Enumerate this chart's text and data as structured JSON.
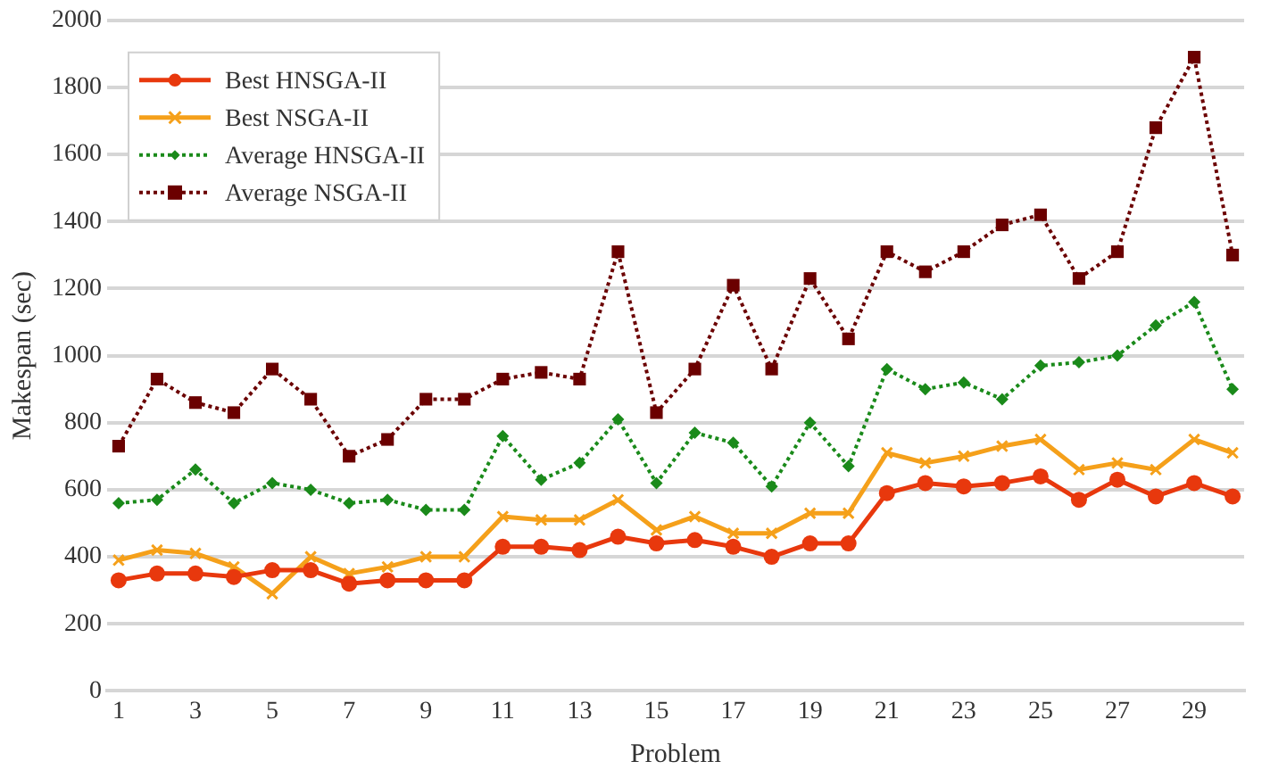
{
  "chart_data": {
    "type": "line",
    "xlabel": "Problem",
    "ylabel": "Makespan (sec)",
    "x": [
      1,
      2,
      3,
      4,
      5,
      6,
      7,
      8,
      9,
      10,
      11,
      12,
      13,
      14,
      15,
      16,
      17,
      18,
      19,
      20,
      21,
      22,
      23,
      24,
      25,
      26,
      27,
      28,
      29,
      30
    ],
    "xlim": [
      0.7,
      30.3
    ],
    "xticks": [
      1,
      3,
      5,
      7,
      9,
      11,
      13,
      15,
      17,
      19,
      21,
      23,
      25,
      27,
      29
    ],
    "ylim": [
      0,
      2000
    ],
    "yticks": [
      0,
      200,
      400,
      600,
      800,
      1000,
      1200,
      1400,
      1600,
      1800,
      2000
    ],
    "grid": "y",
    "legend": "top left",
    "series": [
      {
        "name": "Best HNSGA-II",
        "color": "#e8380d",
        "marker": "circle",
        "line_style": "solid",
        "values": [
          330,
          350,
          350,
          340,
          360,
          360,
          320,
          330,
          330,
          330,
          430,
          430,
          420,
          460,
          440,
          450,
          430,
          400,
          440,
          440,
          590,
          620,
          610,
          620,
          640,
          570,
          630,
          580,
          620,
          580
        ]
      },
      {
        "name": "Best NSGA-II",
        "color": "#f5a01a",
        "marker": "cross",
        "line_style": "solid",
        "values": [
          390,
          420,
          410,
          370,
          290,
          400,
          350,
          370,
          400,
          400,
          520,
          510,
          510,
          570,
          480,
          520,
          470,
          470,
          530,
          530,
          710,
          680,
          700,
          730,
          750,
          660,
          680,
          660,
          750,
          710
        ]
      },
      {
        "name": "Average HNSGA-II",
        "color": "#1a8a1a",
        "marker": "diamond",
        "line_style": "dotted",
        "values": [
          560,
          570,
          660,
          560,
          620,
          600,
          560,
          570,
          540,
          540,
          760,
          630,
          680,
          810,
          620,
          770,
          740,
          610,
          800,
          670,
          960,
          900,
          920,
          870,
          970,
          980,
          1000,
          1090,
          1160,
          900
        ]
      },
      {
        "name": "Average NSGA-II",
        "color": "#6b0000",
        "marker": "square",
        "line_style": "dotted",
        "values": [
          730,
          930,
          860,
          830,
          960,
          870,
          700,
          750,
          870,
          870,
          930,
          950,
          930,
          1310,
          830,
          960,
          1210,
          960,
          1230,
          1050,
          1310,
          1250,
          1310,
          1390,
          1420,
          1230,
          1310,
          1680,
          1890,
          1300
        ]
      }
    ]
  }
}
